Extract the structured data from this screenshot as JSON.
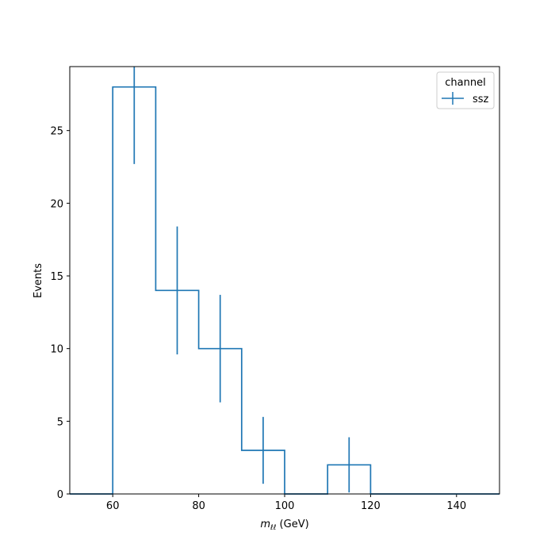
{
  "chart_data": {
    "type": "histogram",
    "xlabel_main": "m",
    "xlabel_sub": "ℓℓ",
    "xlabel_unit": " (GeV)",
    "ylabel": "Events",
    "xlim": [
      50,
      150
    ],
    "ylim": [
      0,
      29.4
    ],
    "xticks": [
      60,
      80,
      100,
      120,
      140
    ],
    "yticks": [
      0,
      5,
      10,
      15,
      20,
      25
    ],
    "legend": {
      "title": "channel",
      "placement": "top-right"
    },
    "series": [
      {
        "name": "ssz",
        "color": "#1f77b4",
        "bin_edges": [
          50,
          60,
          70,
          80,
          90,
          100,
          110,
          120,
          130,
          140,
          150
        ],
        "values": [
          0,
          28,
          14,
          10,
          3,
          0,
          2,
          0,
          0,
          0
        ],
        "errors": [
          0,
          5.3,
          4.4,
          3.7,
          2.3,
          0,
          1.9,
          0,
          0,
          0
        ]
      }
    ]
  }
}
